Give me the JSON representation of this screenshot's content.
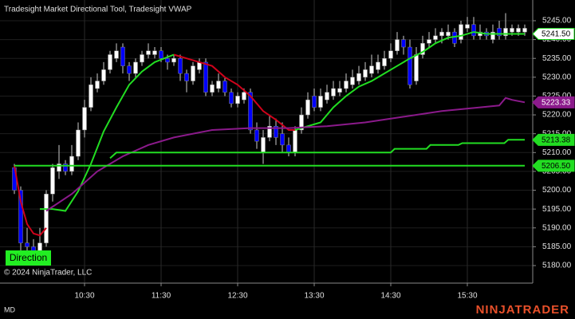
{
  "chart_data": {
    "type": "candlestick",
    "title": "Tradesight Market Directional Tool, Tradesight VWAP",
    "copyright": "© 2024 NinjaTrader, LLC",
    "indicator_label": "Direction",
    "instrument": "MD",
    "brand": "NINJATRADER",
    "up_color": "#ffffff",
    "down_color": "#0000ff",
    "grid": true,
    "xlim": [
      563.75,
      981.25
    ],
    "ylim": [
      5175.34,
      5250.5
    ],
    "xticks": [
      {
        "value": 630,
        "label": "10:30"
      },
      {
        "value": 690,
        "label": "11:30"
      },
      {
        "value": 750,
        "label": "12:30"
      },
      {
        "value": 810,
        "label": "13:30"
      },
      {
        "value": 870,
        "label": "14:30"
      },
      {
        "value": 930,
        "label": "15:30"
      }
    ],
    "yticks": [
      {
        "value": 5245,
        "label": "5245.00"
      },
      {
        "value": 5240,
        "label": "5240.00"
      },
      {
        "value": 5235,
        "label": "5235.00"
      },
      {
        "value": 5230,
        "label": "5230.00"
      },
      {
        "value": 5225,
        "label": "5225.00"
      },
      {
        "value": 5220,
        "label": "5220.00"
      },
      {
        "value": 5215,
        "label": "5215.00"
      },
      {
        "value": 5210,
        "label": "5210.00"
      },
      {
        "value": 5205,
        "label": "5205.00"
      },
      {
        "value": 5200,
        "label": "5200.00"
      },
      {
        "value": 5195,
        "label": "5195.00"
      },
      {
        "value": 5190,
        "label": "5190.00"
      },
      {
        "value": 5185,
        "label": "5185.00"
      },
      {
        "value": 5180,
        "label": "5180.00"
      }
    ],
    "x": [
      575,
      580,
      585,
      590,
      595,
      600,
      605,
      610,
      615,
      620,
      625,
      630,
      635,
      640,
      645,
      650,
      655,
      660,
      665,
      670,
      675,
      680,
      685,
      690,
      695,
      700,
      705,
      710,
      715,
      720,
      725,
      730,
      735,
      740,
      745,
      750,
      755,
      760,
      765,
      770,
      775,
      780,
      785,
      790,
      795,
      800,
      805,
      810,
      815,
      820,
      825,
      830,
      835,
      840,
      845,
      850,
      855,
      860,
      865,
      870,
      875,
      880,
      885,
      890,
      895,
      900,
      905,
      910,
      915,
      920,
      925,
      930,
      935,
      940,
      945,
      950,
      955,
      960,
      965,
      970,
      975
    ],
    "open": [
      5206,
      5200,
      5186,
      5185,
      5184,
      5186,
      5199,
      5205,
      5207,
      5205,
      5209,
      5216,
      5222,
      5227,
      5229,
      5232,
      5235,
      5238,
      5233,
      5231,
      5234,
      5236,
      5236,
      5237,
      5235,
      5234,
      5235,
      5231,
      5229,
      5232,
      5234,
      5226,
      5227,
      5229,
      5226,
      5223,
      5224,
      5226,
      5216,
      5210,
      5214,
      5217,
      5215,
      5212,
      5210,
      5216,
      5220,
      5225,
      5222,
      5224,
      5225,
      5226,
      5227,
      5228,
      5229,
      5230,
      5231,
      5232,
      5233,
      5235,
      5237,
      5240,
      5238,
      5229,
      5236,
      5239,
      5240,
      5241,
      5241,
      5242,
      5240,
      5243,
      5244,
      5241,
      5242,
      5240,
      5243,
      5241,
      5242,
      5242,
      5242
    ],
    "high": [
      5207,
      5201,
      5190,
      5187,
      5190,
      5200,
      5207,
      5212,
      5208,
      5212,
      5218,
      5224,
      5230,
      5231,
      5234,
      5237,
      5239,
      5239,
      5234,
      5235,
      5237,
      5239,
      5238,
      5238,
      5236,
      5236,
      5236,
      5232,
      5234,
      5235,
      5235,
      5229,
      5231,
      5230,
      5227,
      5226,
      5227,
      5227,
      5218,
      5216,
      5220,
      5219,
      5218,
      5214,
      5217,
      5222,
      5226,
      5227,
      5227,
      5228,
      5229,
      5229,
      5231,
      5232,
      5233,
      5234,
      5236,
      5236,
      5237,
      5239,
      5242,
      5241,
      5240,
      5238,
      5241,
      5242,
      5243,
      5243,
      5244,
      5243,
      5245,
      5246,
      5246,
      5244,
      5243,
      5244,
      5245,
      5247,
      5244,
      5244,
      5244
    ],
    "low": [
      5199,
      5184,
      5184,
      5183,
      5182,
      5185,
      5197,
      5203,
      5204,
      5204,
      5208,
      5214,
      5221,
      5226,
      5228,
      5231,
      5234,
      5231,
      5229,
      5230,
      5233,
      5235,
      5235,
      5234,
      5232,
      5233,
      5229,
      5226,
      5228,
      5231,
      5225,
      5225,
      5226,
      5225,
      5222,
      5222,
      5223,
      5215,
      5211,
      5207,
      5213,
      5212,
      5210,
      5209,
      5209,
      5215,
      5219,
      5221,
      5221,
      5223,
      5224,
      5225,
      5226,
      5227,
      5228,
      5229,
      5230,
      5231,
      5232,
      5234,
      5236,
      5236,
      5227,
      5228,
      5235,
      5238,
      5239,
      5239,
      5240,
      5238,
      5239,
      5242,
      5240,
      5240,
      5240,
      5239,
      5240,
      5240,
      5241,
      5241,
      5241
    ],
    "close": [
      5200,
      5186,
      5185,
      5183,
      5186,
      5199,
      5206,
      5207,
      5205,
      5209,
      5216,
      5222,
      5228,
      5229,
      5232,
      5236,
      5237,
      5233,
      5231,
      5234,
      5236,
      5237,
      5237,
      5235,
      5234,
      5235,
      5231,
      5229,
      5233,
      5234,
      5226,
      5228,
      5229,
      5226,
      5223,
      5225,
      5226,
      5216,
      5213,
      5214,
      5217,
      5214,
      5212,
      5210,
      5216,
      5220,
      5224,
      5222,
      5225,
      5226,
      5227,
      5227,
      5229,
      5230,
      5231,
      5232,
      5233,
      5234,
      5235,
      5237,
      5240,
      5238,
      5228,
      5236,
      5239,
      5240,
      5241,
      5242,
      5242,
      5239,
      5244,
      5244,
      5241,
      5242,
      5241,
      5242,
      5241,
      5243,
      5243,
      5243,
      5243
    ],
    "lines": [
      {
        "color": "#d0021b",
        "x": [
          575,
          580,
          585,
          590,
          595,
          600,
          650,
          700,
          710,
          720,
          730,
          740,
          750,
          760,
          770,
          780,
          790,
          795
        ],
        "values": [
          5206.5,
          5197,
          5191,
          5188.5,
          5188,
          5190,
          null,
          5236,
          5235,
          5234,
          5233,
          5230,
          5228,
          5225,
          5221,
          5218.7,
          5216,
          5216
        ]
      },
      {
        "color": "#22dd22",
        "x": [
          595,
          605,
          615,
          625,
          635,
          645,
          655,
          665,
          675,
          685,
          700,
          750,
          795,
          805,
          815,
          825,
          835,
          845,
          855,
          865,
          875,
          885,
          895,
          905,
          915,
          925,
          935,
          945,
          955,
          965,
          975
        ],
        "values": [
          5195,
          5195,
          5194.5,
          5199.7,
          5207,
          5215.6,
          5222,
          5228,
          5231.5,
          5234,
          5236,
          null,
          5216,
          5217,
          5218,
          5222,
          5225,
          5227.5,
          5229,
          5231,
          5233,
          5235,
          5236.7,
          5239,
          5240.5,
          5241,
          5242,
          5241.5,
          5241.5,
          5241.5,
          5241.5
        ]
      },
      {
        "color": "#8b1a8b",
        "x": [
          600,
          620,
          640,
          660,
          680,
          700,
          730,
          760,
          790,
          820,
          850,
          880,
          910,
          940,
          955,
          960,
          965,
          975
        ],
        "values": [
          5194.5,
          5199,
          5205,
          5209,
          5212,
          5214,
          5216,
          5216.5,
          5216.5,
          5217,
          5218,
          5219.5,
          5221,
          5222,
          5222.5,
          5224.5,
          5224,
          5223.33
        ]
      },
      {
        "color": "#22dd22",
        "x": [
          575,
          975
        ],
        "values": [
          5206.5,
          5206.5
        ]
      },
      {
        "color": "#22dd22",
        "x": [
          650,
          655,
          870,
          873,
          898,
          901,
          923,
          926,
          959,
          962,
          975
        ],
        "values": [
          5208.5,
          5210,
          5210,
          5211,
          5211,
          5212,
          5212,
          5212.5,
          5212.5,
          5213.38,
          5213.38
        ]
      }
    ],
    "price_tags": [
      {
        "value": 5241.5,
        "label": "5241.50",
        "color": "#ffffff",
        "text_color": "#000000",
        "border": "#22dd22"
      },
      {
        "value": 5223.33,
        "label": "5223.33",
        "color": "#8b1a8b",
        "text_color": "#ffffff",
        "border": "#8b1a8b"
      },
      {
        "value": 5213.38,
        "label": "5213.38",
        "color": "#22dd22",
        "text_color": "#000000",
        "border": "#22dd22"
      },
      {
        "value": 5206.5,
        "label": "5206.50",
        "color": "#22dd22",
        "text_color": "#000000",
        "border": "#22dd22"
      }
    ]
  }
}
